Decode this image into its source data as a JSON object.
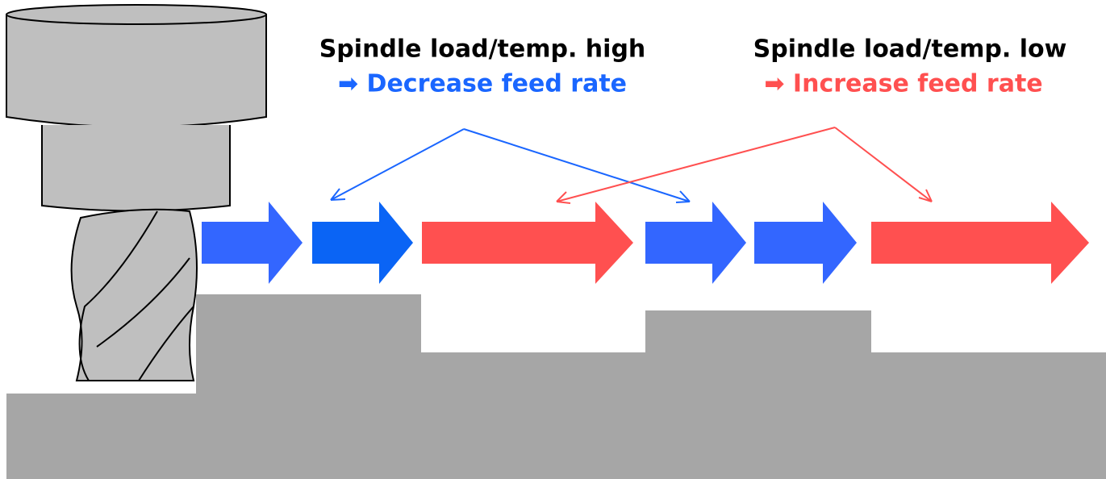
{
  "labels": [
    {
      "title": "Spindle load/temp. high",
      "action": "➡ Decrease feed rate"
    },
    {
      "title": "Spindle load/temp. low",
      "action": "➡ Increase feed rate"
    }
  ]
}
